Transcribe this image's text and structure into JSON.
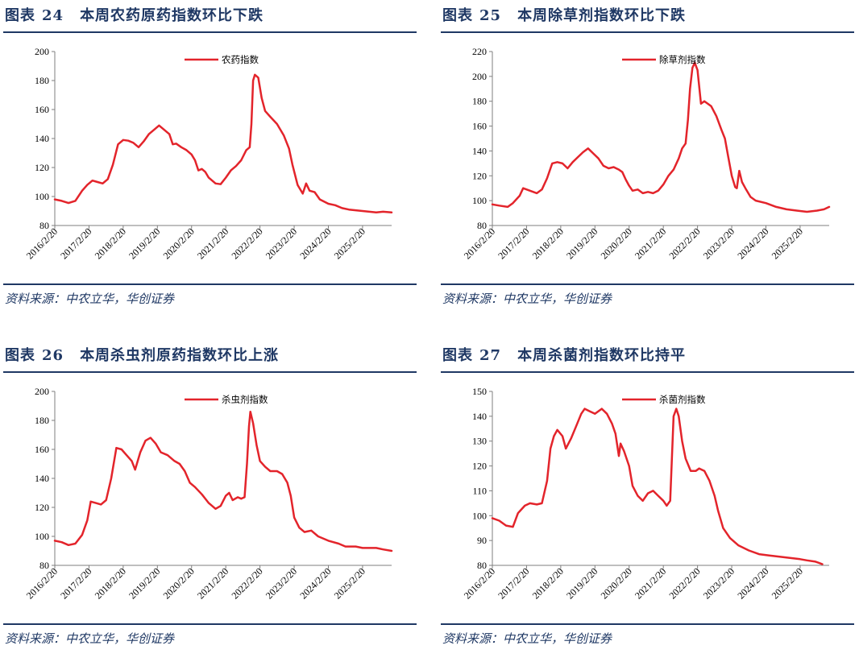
{
  "panels": [
    {
      "label": "图表",
      "number": "24",
      "title": "本周农药原药指数环比下跌",
      "source": "资料来源：中农立华，华创证券",
      "chart_data": {
        "type": "line",
        "series": [
          {
            "name": "农药指数",
            "color": "#e3242b"
          }
        ],
        "ylim": [
          80,
          200
        ],
        "yticks": [
          80,
          100,
          120,
          140,
          160,
          180,
          200
        ],
        "xticks": [
          "2016/2/20",
          "2017/2/20",
          "2018/2/20",
          "2019/2/20",
          "2020/2/20",
          "2021/2/20",
          "2022/2/20",
          "2023/2/20",
          "2024/2/20",
          "2025/2/20"
        ],
        "x_range": [
          2016.0,
          2025.85
        ],
        "points": [
          [
            2016.0,
            98
          ],
          [
            2016.2,
            97
          ],
          [
            2016.4,
            95.5
          ],
          [
            2016.6,
            97
          ],
          [
            2016.8,
            104
          ],
          [
            2016.95,
            108
          ],
          [
            2017.1,
            111
          ],
          [
            2017.25,
            110
          ],
          [
            2017.4,
            109
          ],
          [
            2017.55,
            112
          ],
          [
            2017.7,
            122
          ],
          [
            2017.85,
            136
          ],
          [
            2018.0,
            139
          ],
          [
            2018.15,
            138.5
          ],
          [
            2018.3,
            137
          ],
          [
            2018.45,
            134
          ],
          [
            2018.6,
            138
          ],
          [
            2018.75,
            143
          ],
          [
            2018.9,
            146
          ],
          [
            2019.05,
            149
          ],
          [
            2019.2,
            146
          ],
          [
            2019.35,
            143
          ],
          [
            2019.45,
            136
          ],
          [
            2019.55,
            136.5
          ],
          [
            2019.7,
            134
          ],
          [
            2019.85,
            132
          ],
          [
            2020.0,
            129
          ],
          [
            2020.1,
            125
          ],
          [
            2020.2,
            118
          ],
          [
            2020.3,
            119
          ],
          [
            2020.4,
            117
          ],
          [
            2020.5,
            113
          ],
          [
            2020.7,
            109
          ],
          [
            2020.85,
            108.5
          ],
          [
            2021.0,
            113
          ],
          [
            2021.15,
            118
          ],
          [
            2021.3,
            121
          ],
          [
            2021.45,
            125
          ],
          [
            2021.6,
            132
          ],
          [
            2021.7,
            134
          ],
          [
            2021.75,
            150
          ],
          [
            2021.8,
            180
          ],
          [
            2021.85,
            184
          ],
          [
            2021.95,
            182
          ],
          [
            2022.05,
            168
          ],
          [
            2022.15,
            159
          ],
          [
            2022.3,
            155
          ],
          [
            2022.5,
            150
          ],
          [
            2022.7,
            142
          ],
          [
            2022.85,
            133
          ],
          [
            2022.95,
            122
          ],
          [
            2023.1,
            108
          ],
          [
            2023.25,
            102
          ],
          [
            2023.35,
            109
          ],
          [
            2023.45,
            104
          ],
          [
            2023.6,
            103
          ],
          [
            2023.75,
            98
          ],
          [
            2024.0,
            95
          ],
          [
            2024.2,
            94
          ],
          [
            2024.4,
            92
          ],
          [
            2024.6,
            91
          ],
          [
            2024.8,
            90.5
          ],
          [
            2025.0,
            90
          ],
          [
            2025.2,
            89.5
          ],
          [
            2025.4,
            89
          ],
          [
            2025.6,
            89.5
          ],
          [
            2025.85,
            89
          ]
        ]
      }
    },
    {
      "label": "图表",
      "number": "25",
      "title": "本周除草剂指数环比下跌",
      "source": "资料来源：中农立华，华创证券",
      "chart_data": {
        "type": "line",
        "series": [
          {
            "name": "除草剂指数",
            "color": "#e3242b"
          }
        ],
        "ylim": [
          80,
          220
        ],
        "yticks": [
          80,
          100,
          120,
          140,
          160,
          180,
          200,
          220
        ],
        "xticks": [
          "2016/2/20",
          "2017/2/20",
          "2018/2/20",
          "2019/2/20",
          "2020/2/20",
          "2021/2/20",
          "2022/2/20",
          "2023/2/20",
          "2024/2/20",
          "2025/2/20"
        ],
        "x_range": [
          2016.0,
          2025.85
        ],
        "points": [
          [
            2016.0,
            97
          ],
          [
            2016.2,
            96
          ],
          [
            2016.45,
            95
          ],
          [
            2016.6,
            98
          ],
          [
            2016.8,
            104
          ],
          [
            2016.9,
            110
          ],
          [
            2017.1,
            108
          ],
          [
            2017.3,
            106
          ],
          [
            2017.45,
            109
          ],
          [
            2017.6,
            118
          ],
          [
            2017.75,
            130
          ],
          [
            2017.9,
            131
          ],
          [
            2018.05,
            130
          ],
          [
            2018.2,
            126
          ],
          [
            2018.35,
            131
          ],
          [
            2018.5,
            135
          ],
          [
            2018.65,
            139
          ],
          [
            2018.8,
            142
          ],
          [
            2018.95,
            138
          ],
          [
            2019.1,
            134
          ],
          [
            2019.25,
            128
          ],
          [
            2019.4,
            126
          ],
          [
            2019.55,
            127
          ],
          [
            2019.7,
            125
          ],
          [
            2019.8,
            123
          ],
          [
            2019.9,
            117
          ],
          [
            2020.0,
            112
          ],
          [
            2020.1,
            108
          ],
          [
            2020.25,
            109
          ],
          [
            2020.4,
            106
          ],
          [
            2020.55,
            107
          ],
          [
            2020.7,
            106
          ],
          [
            2020.85,
            108
          ],
          [
            2021.0,
            113
          ],
          [
            2021.15,
            120
          ],
          [
            2021.3,
            125
          ],
          [
            2021.45,
            134
          ],
          [
            2021.55,
            142
          ],
          [
            2021.65,
            146
          ],
          [
            2021.72,
            165
          ],
          [
            2021.78,
            190
          ],
          [
            2021.85,
            207
          ],
          [
            2021.92,
            211
          ],
          [
            2022.0,
            205
          ],
          [
            2022.1,
            178
          ],
          [
            2022.2,
            180
          ],
          [
            2022.4,
            176
          ],
          [
            2022.55,
            168
          ],
          [
            2022.7,
            157
          ],
          [
            2022.8,
            150
          ],
          [
            2022.9,
            135
          ],
          [
            2023.0,
            120
          ],
          [
            2023.1,
            111
          ],
          [
            2023.15,
            110
          ],
          [
            2023.22,
            124
          ],
          [
            2023.3,
            115
          ],
          [
            2023.4,
            110
          ],
          [
            2023.55,
            103
          ],
          [
            2023.7,
            100
          ],
          [
            2024.0,
            98
          ],
          [
            2024.3,
            95
          ],
          [
            2024.6,
            93
          ],
          [
            2024.9,
            92
          ],
          [
            2025.2,
            91
          ],
          [
            2025.5,
            92
          ],
          [
            2025.7,
            93
          ],
          [
            2025.85,
            95
          ]
        ]
      }
    },
    {
      "label": "图表",
      "number": "26",
      "title": "本周杀虫剂原药指数环比上涨",
      "source": "资料来源：中农立华，华创证券",
      "chart_data": {
        "type": "line",
        "series": [
          {
            "name": "杀虫剂指数",
            "color": "#e3242b"
          }
        ],
        "ylim": [
          80,
          200
        ],
        "yticks": [
          80,
          100,
          120,
          140,
          160,
          180,
          200
        ],
        "xticks": [
          "2016/2/20",
          "2017/2/20",
          "2018/2/20",
          "2019/2/20",
          "2020/2/20",
          "2021/2/20",
          "2022/2/20",
          "2023/2/20",
          "2024/2/20",
          "2025/2/20"
        ],
        "x_range": [
          2016.0,
          2025.85
        ],
        "points": [
          [
            2016.0,
            97
          ],
          [
            2016.2,
            96
          ],
          [
            2016.4,
            94
          ],
          [
            2016.6,
            95
          ],
          [
            2016.8,
            101
          ],
          [
            2016.95,
            111
          ],
          [
            2017.05,
            124
          ],
          [
            2017.2,
            123
          ],
          [
            2017.35,
            122
          ],
          [
            2017.5,
            125
          ],
          [
            2017.65,
            140
          ],
          [
            2017.8,
            161
          ],
          [
            2017.95,
            160
          ],
          [
            2018.1,
            156
          ],
          [
            2018.25,
            152
          ],
          [
            2018.35,
            146
          ],
          [
            2018.5,
            158
          ],
          [
            2018.65,
            166
          ],
          [
            2018.8,
            168
          ],
          [
            2018.95,
            164
          ],
          [
            2019.1,
            158
          ],
          [
            2019.3,
            156
          ],
          [
            2019.5,
            152
          ],
          [
            2019.65,
            150
          ],
          [
            2019.8,
            145
          ],
          [
            2019.95,
            137
          ],
          [
            2020.1,
            134
          ],
          [
            2020.3,
            129
          ],
          [
            2020.5,
            123
          ],
          [
            2020.7,
            119
          ],
          [
            2020.85,
            121
          ],
          [
            2021.0,
            128
          ],
          [
            2021.1,
            130
          ],
          [
            2021.2,
            125
          ],
          [
            2021.35,
            127
          ],
          [
            2021.45,
            126
          ],
          [
            2021.55,
            127
          ],
          [
            2021.62,
            150
          ],
          [
            2021.68,
            176
          ],
          [
            2021.72,
            186
          ],
          [
            2021.8,
            178
          ],
          [
            2021.9,
            163
          ],
          [
            2022.0,
            152
          ],
          [
            2022.15,
            148
          ],
          [
            2022.3,
            145
          ],
          [
            2022.5,
            145
          ],
          [
            2022.65,
            143
          ],
          [
            2022.8,
            137
          ],
          [
            2022.9,
            128
          ],
          [
            2023.0,
            113
          ],
          [
            2023.15,
            106
          ],
          [
            2023.3,
            103
          ],
          [
            2023.5,
            104
          ],
          [
            2023.7,
            100
          ],
          [
            2024.0,
            97
          ],
          [
            2024.3,
            95
          ],
          [
            2024.5,
            93
          ],
          [
            2024.8,
            93
          ],
          [
            2025.0,
            92
          ],
          [
            2025.2,
            92
          ],
          [
            2025.4,
            92
          ],
          [
            2025.6,
            91
          ],
          [
            2025.85,
            90
          ]
        ]
      }
    },
    {
      "label": "图表",
      "number": "27",
      "title": "本周杀菌剂指数环比持平",
      "source": "资料来源：中农立华，华创证券",
      "chart_data": {
        "type": "line",
        "series": [
          {
            "name": "杀菌剂指数",
            "color": "#e3242b"
          }
        ],
        "ylim": [
          80,
          150
        ],
        "yticks": [
          80,
          90,
          100,
          110,
          120,
          130,
          140,
          150
        ],
        "xticks": [
          "2016/2/20",
          "2017/2/20",
          "2018/2/20",
          "2019/2/20",
          "2020/2/20",
          "2021/2/20",
          "2022/2/20",
          "2023/2/20",
          "2024/2/20",
          "2025/2/20"
        ],
        "x_range": [
          2016.0,
          2025.85
        ],
        "points": [
          [
            2016.0,
            99
          ],
          [
            2016.2,
            98
          ],
          [
            2016.4,
            96
          ],
          [
            2016.6,
            95.5
          ],
          [
            2016.75,
            101
          ],
          [
            2016.95,
            104
          ],
          [
            2017.1,
            105
          ],
          [
            2017.3,
            104.5
          ],
          [
            2017.45,
            105
          ],
          [
            2017.6,
            114
          ],
          [
            2017.7,
            127
          ],
          [
            2017.8,
            132
          ],
          [
            2017.9,
            134.5
          ],
          [
            2018.05,
            132
          ],
          [
            2018.15,
            127
          ],
          [
            2018.3,
            131
          ],
          [
            2018.45,
            136
          ],
          [
            2018.6,
            141
          ],
          [
            2018.7,
            143
          ],
          [
            2018.85,
            142
          ],
          [
            2019.0,
            141
          ],
          [
            2019.2,
            143
          ],
          [
            2019.35,
            141
          ],
          [
            2019.5,
            137
          ],
          [
            2019.6,
            133
          ],
          [
            2019.7,
            124
          ],
          [
            2019.75,
            129
          ],
          [
            2019.85,
            126
          ],
          [
            2020.0,
            120
          ],
          [
            2020.1,
            112
          ],
          [
            2020.25,
            108
          ],
          [
            2020.4,
            106
          ],
          [
            2020.55,
            109
          ],
          [
            2020.7,
            110
          ],
          [
            2020.85,
            108
          ],
          [
            2021.0,
            106
          ],
          [
            2021.1,
            104
          ],
          [
            2021.2,
            106
          ],
          [
            2021.3,
            140
          ],
          [
            2021.38,
            143
          ],
          [
            2021.45,
            140
          ],
          [
            2021.55,
            130
          ],
          [
            2021.65,
            123
          ],
          [
            2021.8,
            118
          ],
          [
            2021.95,
            118
          ],
          [
            2022.05,
            119
          ],
          [
            2022.2,
            118
          ],
          [
            2022.35,
            114
          ],
          [
            2022.5,
            108
          ],
          [
            2022.6,
            102
          ],
          [
            2022.75,
            95
          ],
          [
            2022.95,
            91
          ],
          [
            2023.2,
            88
          ],
          [
            2023.5,
            86
          ],
          [
            2023.8,
            84.5
          ],
          [
            2024.1,
            84
          ],
          [
            2024.4,
            83.5
          ],
          [
            2024.7,
            83
          ],
          [
            2025.0,
            82.5
          ],
          [
            2025.2,
            82
          ],
          [
            2025.45,
            81.5
          ],
          [
            2025.65,
            80.5
          ]
        ]
      }
    }
  ]
}
